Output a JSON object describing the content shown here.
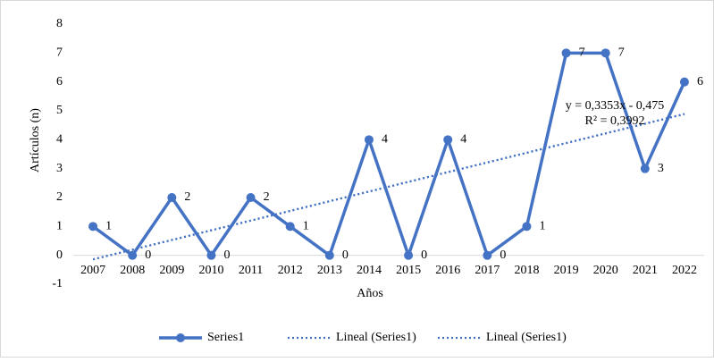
{
  "chart_data": {
    "type": "line",
    "x_label": "Años",
    "y_label": "Artículos (n)",
    "categories": [
      "2007",
      "2008",
      "2009",
      "2010",
      "2011",
      "2012",
      "2013",
      "2014",
      "2015",
      "2016",
      "2017",
      "2018",
      "2019",
      "2020",
      "2021",
      "2022"
    ],
    "series": [
      {
        "name": "Series1",
        "color": "#4472c4",
        "values": [
          1,
          0,
          2,
          0,
          2,
          1,
          0,
          4,
          0,
          4,
          0,
          1,
          7,
          7,
          3,
          6
        ]
      },
      {
        "name": "Lineal (Series1)",
        "color": "#4472c4",
        "trend": true,
        "slope": 0.3353,
        "intercept": -0.475
      },
      {
        "name": "Lineal (Series1)",
        "color": "#4472c4",
        "trend": true,
        "slope": 0.3353,
        "intercept": -0.475
      }
    ],
    "annotations": [
      "y = 0,3353x - 0,475",
      "R² = 0,3992"
    ],
    "ylim": [
      -1,
      8
    ],
    "yticks": [
      -1,
      0,
      1,
      2,
      3,
      4,
      5,
      6,
      7,
      8
    ],
    "grid": false,
    "legend": "bottom"
  }
}
